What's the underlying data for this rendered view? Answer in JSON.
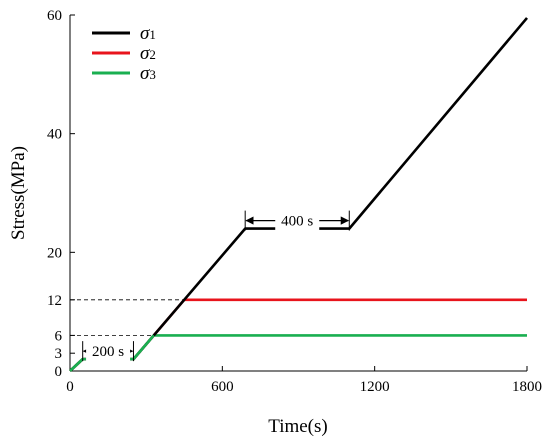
{
  "chart_data": {
    "type": "line",
    "xlabel": "Time(s)",
    "ylabel": "Stress(MPa)",
    "xlim": [
      0,
      1800
    ],
    "ylim": [
      0,
      60
    ],
    "xticks": [
      0,
      600,
      1200,
      1800
    ],
    "yticks": [
      0,
      3,
      6,
      12,
      20,
      40,
      60
    ],
    "grid": false,
    "legend_position": "top-left",
    "series": [
      {
        "name": "σ1",
        "name_symbol": "σ",
        "name_subscript": "1",
        "color": "#000000",
        "x": [
          0,
          50,
          250,
          690,
          1100,
          1800
        ],
        "y": [
          0,
          2,
          2,
          24,
          24,
          59.5
        ]
      },
      {
        "name": "σ2",
        "name_symbol": "σ",
        "name_subscript": "2",
        "color": "#e8141c",
        "x": [
          0,
          50,
          250,
          450,
          1800
        ],
        "y": [
          0,
          2,
          2,
          12,
          12
        ]
      },
      {
        "name": "σ3",
        "name_symbol": "σ",
        "name_subscript": "3",
        "color": "#1aaf50",
        "x": [
          0,
          50,
          250,
          330,
          1800
        ],
        "y": [
          0,
          2,
          2,
          6,
          6
        ]
      }
    ],
    "reference_lines": [
      {
        "y": 12,
        "x_end": 450,
        "style": "dashed"
      },
      {
        "y": 6,
        "x_end": 330,
        "style": "dashed"
      }
    ],
    "annotations": [
      {
        "label": "200 s",
        "x_start": 50,
        "x_end": 250,
        "y": 2
      },
      {
        "label": "400 s",
        "x_start": 690,
        "x_end": 1100,
        "y": 24
      }
    ]
  }
}
